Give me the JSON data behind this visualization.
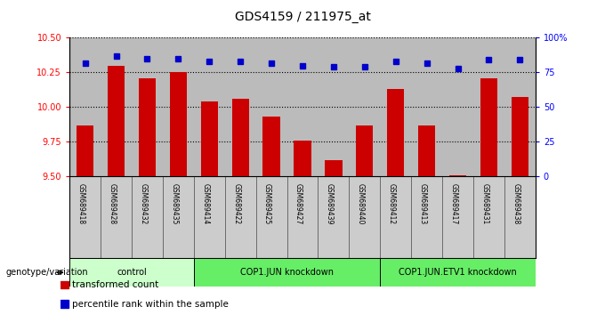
{
  "title": "GDS4159 / 211975_at",
  "samples": [
    "GSM689418",
    "GSM689428",
    "GSM689432",
    "GSM689435",
    "GSM689414",
    "GSM689422",
    "GSM689425",
    "GSM689427",
    "GSM689439",
    "GSM689440",
    "GSM689412",
    "GSM689413",
    "GSM689417",
    "GSM689431",
    "GSM689438"
  ],
  "transformed_count": [
    9.87,
    10.3,
    10.21,
    10.25,
    10.04,
    10.06,
    9.93,
    9.76,
    9.62,
    9.87,
    10.13,
    9.87,
    9.51,
    10.21,
    10.07
  ],
  "percentile_rank": [
    82,
    87,
    85,
    85,
    83,
    83,
    82,
    80,
    79,
    79,
    83,
    82,
    78,
    84,
    84
  ],
  "groups": [
    {
      "label": "control",
      "start": 0,
      "end": 3,
      "color": "#ccffcc"
    },
    {
      "label": "COP1.JUN knockdown",
      "start": 4,
      "end": 9,
      "color": "#66ee66"
    },
    {
      "label": "COP1.JUN.ETV1 knockdown",
      "start": 10,
      "end": 14,
      "color": "#66ee66"
    }
  ],
  "ylim_left": [
    9.5,
    10.5
  ],
  "ylim_right": [
    0,
    100
  ],
  "yticks_left": [
    9.5,
    9.75,
    10.0,
    10.25,
    10.5
  ],
  "yticks_right": [
    0,
    25,
    50,
    75,
    100
  ],
  "bar_color": "#cc0000",
  "dot_color": "#0000cc",
  "bg_color": "#bbbbbb",
  "cell_bg": "#cccccc",
  "legend_items": [
    {
      "color": "#cc0000",
      "label": "transformed count"
    },
    {
      "color": "#0000cc",
      "label": "percentile rank within the sample"
    }
  ]
}
